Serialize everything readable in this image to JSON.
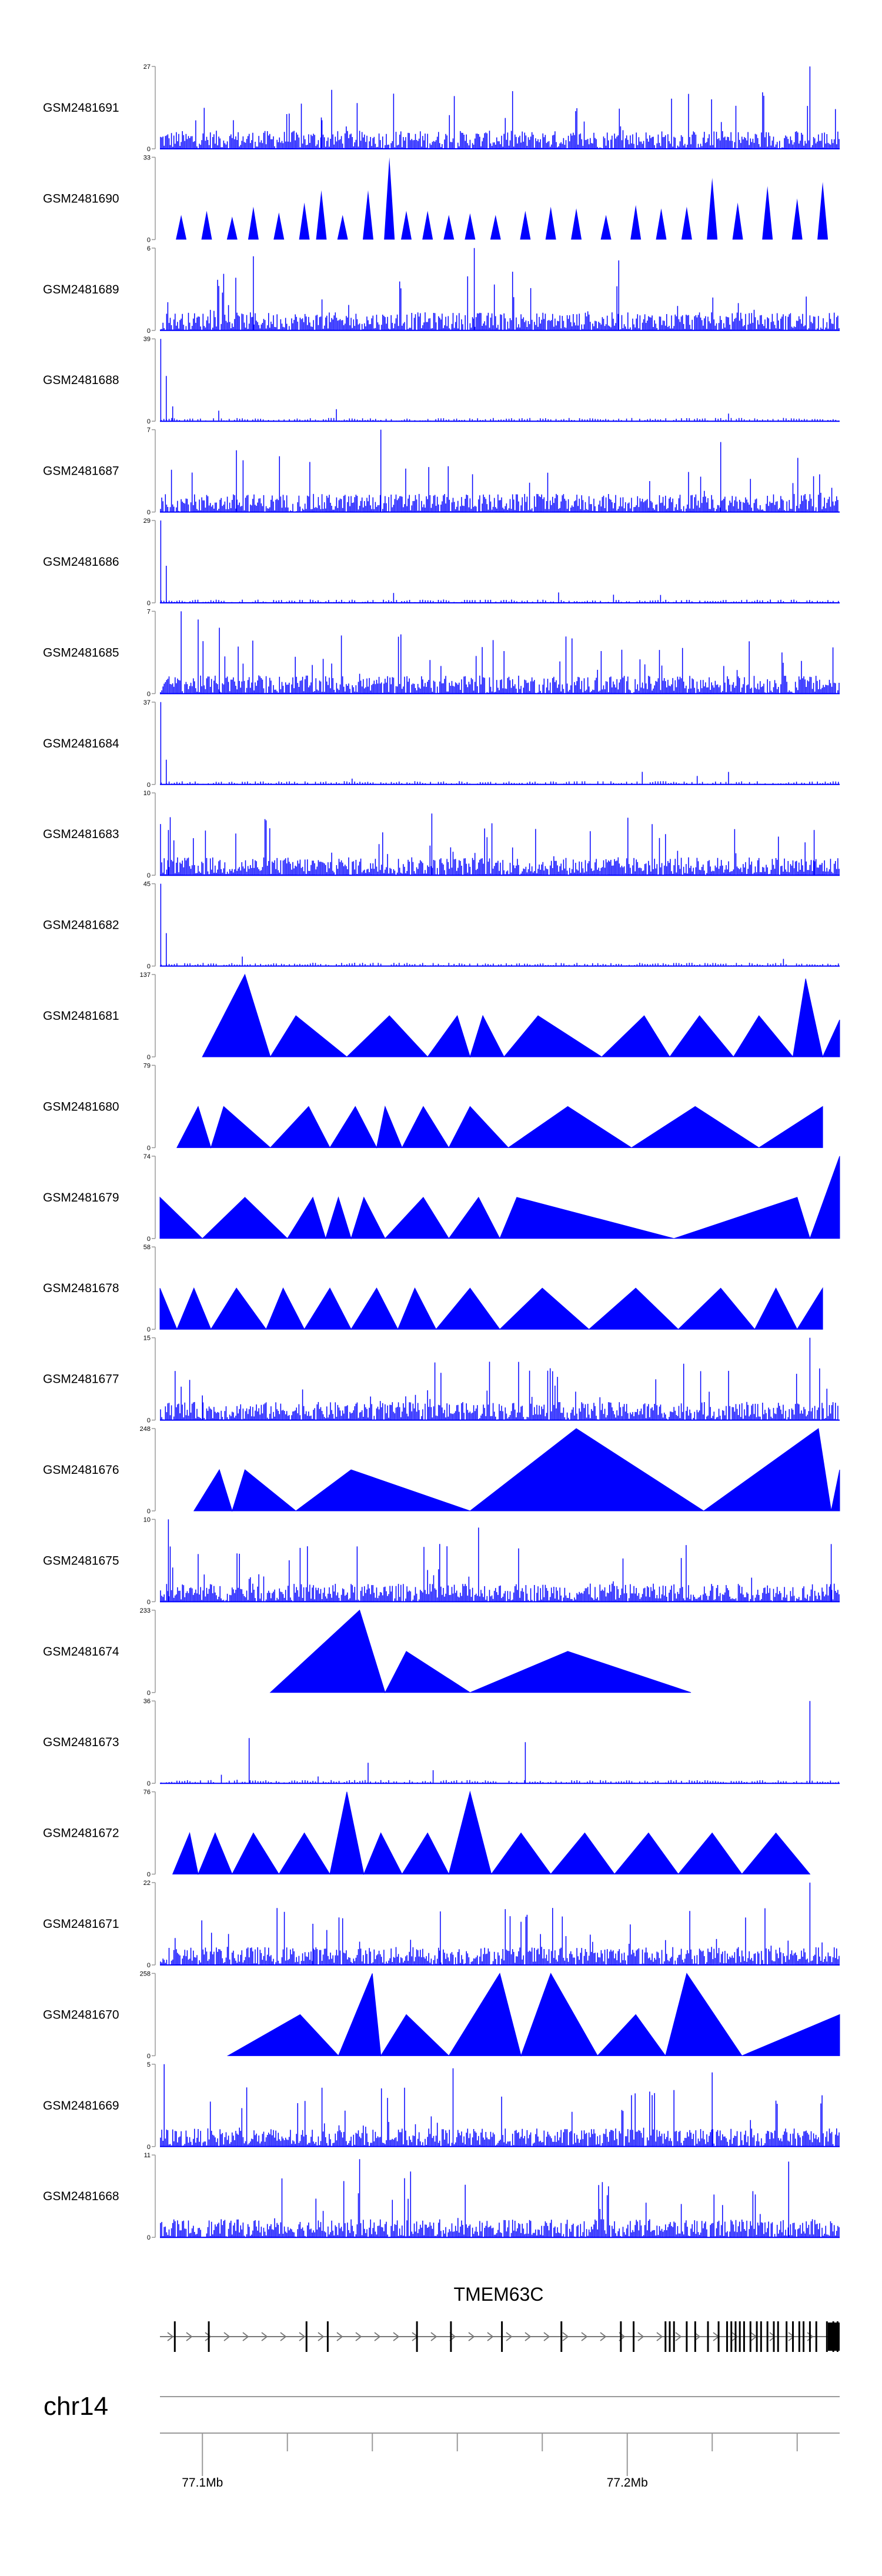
{
  "colors": {
    "signal": "#0000FF",
    "axis": "#9a9a9a",
    "text": "#000000",
    "exon": "#000000"
  },
  "chart_data": {
    "type": "area",
    "chromosome": "chr14",
    "xlim_mb": [
      77.09,
      77.25
    ],
    "x_ticks": [
      {
        "value": 77.1,
        "label": "77.1Mb"
      },
      {
        "value": 77.12,
        "label": ""
      },
      {
        "value": 77.14,
        "label": ""
      },
      {
        "value": 77.16,
        "label": ""
      },
      {
        "value": 77.18,
        "label": ""
      },
      {
        "value": 77.2,
        "label": "77.2Mb"
      },
      {
        "value": 77.22,
        "label": ""
      },
      {
        "value": 77.24,
        "label": ""
      }
    ],
    "tracks": [
      {
        "name": "GSM2481691",
        "max": 27,
        "ylabel_max": "27",
        "ylabel_min": "0",
        "style": "dense",
        "peaks": [
          [
            77.128,
            0.38
          ],
          [
            77.243,
            1.0
          ]
        ]
      },
      {
        "name": "GSM2481690",
        "max": 33,
        "ylabel_max": "33",
        "ylabel_min": "0",
        "style": "spikes",
        "peaks": [
          [
            77.095,
            0.3
          ],
          [
            77.101,
            0.35
          ],
          [
            77.107,
            0.28
          ],
          [
            77.112,
            0.4
          ],
          [
            77.118,
            0.33
          ],
          [
            77.124,
            0.45
          ],
          [
            77.128,
            0.6
          ],
          [
            77.133,
            0.3
          ],
          [
            77.139,
            0.6
          ],
          [
            77.144,
            1.0
          ],
          [
            77.148,
            0.35
          ],
          [
            77.153,
            0.35
          ],
          [
            77.158,
            0.3
          ],
          [
            77.163,
            0.32
          ],
          [
            77.169,
            0.3
          ],
          [
            77.176,
            0.35
          ],
          [
            77.182,
            0.4
          ],
          [
            77.188,
            0.38
          ],
          [
            77.195,
            0.3
          ],
          [
            77.202,
            0.42
          ],
          [
            77.208,
            0.38
          ],
          [
            77.214,
            0.4
          ],
          [
            77.22,
            0.75
          ],
          [
            77.226,
            0.45
          ],
          [
            77.233,
            0.65
          ],
          [
            77.24,
            0.5
          ],
          [
            77.246,
            0.7
          ]
        ]
      },
      {
        "name": "GSM2481689",
        "max": 6,
        "ylabel_max": "6",
        "ylabel_min": "0",
        "style": "dense",
        "peaks": [
          [
            77.164,
            1.0
          ],
          [
            77.112,
            0.9
          ],
          [
            77.198,
            0.85
          ]
        ]
      },
      {
        "name": "GSM2481688",
        "max": 39,
        "ylabel_max": "39",
        "ylabel_min": "0",
        "style": "sparse",
        "peaks": [
          [
            77.0902,
            1.0
          ],
          [
            77.0915,
            0.55
          ],
          [
            77.093,
            0.18
          ]
        ]
      },
      {
        "name": "GSM2481687",
        "max": 7,
        "ylabel_max": "7",
        "ylabel_min": "0",
        "style": "dense",
        "peaks": [
          [
            77.142,
            1.0
          ],
          [
            77.222,
            0.85
          ],
          [
            77.108,
            0.75
          ]
        ]
      },
      {
        "name": "GSM2481686",
        "max": 29,
        "ylabel_max": "29",
        "ylabel_min": "0",
        "style": "sparse",
        "peaks": [
          [
            77.0902,
            1.0
          ],
          [
            77.0915,
            0.45
          ],
          [
            77.145,
            0.12
          ]
        ]
      },
      {
        "name": "GSM2481685",
        "max": 7,
        "ylabel_max": "7",
        "ylabel_min": "0",
        "style": "dense",
        "peaks": [
          [
            77.095,
            1.0
          ],
          [
            77.099,
            0.9
          ],
          [
            77.104,
            0.8
          ]
        ]
      },
      {
        "name": "GSM2481684",
        "max": 37,
        "ylabel_max": "37",
        "ylabel_min": "0",
        "style": "sparse",
        "peaks": [
          [
            77.0902,
            1.0
          ],
          [
            77.0915,
            0.3
          ]
        ]
      },
      {
        "name": "GSM2481683",
        "max": 10,
        "ylabel_max": "10",
        "ylabel_min": "0",
        "style": "dense",
        "peaks": [
          [
            77.154,
            0.75
          ],
          [
            77.244,
            0.55
          ],
          [
            77.092,
            0.55
          ]
        ]
      },
      {
        "name": "GSM2481682",
        "max": 45,
        "ylabel_max": "45",
        "ylabel_min": "0",
        "style": "sparse",
        "peaks": [
          [
            77.0902,
            1.0
          ],
          [
            77.0915,
            0.4
          ]
        ]
      },
      {
        "name": "GSM2481681",
        "max": 137,
        "ylabel_max": "137",
        "ylabel_min": "0",
        "style": "triangles",
        "points": [
          [
            77.1,
            0
          ],
          [
            77.11,
            1.0
          ],
          [
            77.116,
            0
          ],
          [
            77.122,
            0.5
          ],
          [
            77.134,
            0
          ],
          [
            77.144,
            0.5
          ],
          [
            77.153,
            0
          ],
          [
            77.16,
            0.5
          ],
          [
            77.163,
            0
          ],
          [
            77.166,
            0.5
          ],
          [
            77.171,
            0
          ],
          [
            77.179,
            0.5
          ],
          [
            77.194,
            0
          ],
          [
            77.204,
            0.5
          ],
          [
            77.21,
            0
          ],
          [
            77.217,
            0.5
          ],
          [
            77.225,
            0
          ],
          [
            77.231,
            0.5
          ],
          [
            77.239,
            0
          ],
          [
            77.242,
            0.95
          ],
          [
            77.246,
            0
          ],
          [
            77.25,
            0.45
          ]
        ]
      },
      {
        "name": "GSM2481680",
        "max": 79,
        "ylabel_max": "79",
        "ylabel_min": "0",
        "style": "triangles",
        "points": [
          [
            77.094,
            0
          ],
          [
            77.099,
            0.5
          ],
          [
            77.102,
            0
          ],
          [
            77.105,
            0.5
          ],
          [
            77.116,
            0
          ],
          [
            77.125,
            0.5
          ],
          [
            77.13,
            0
          ],
          [
            77.136,
            0.5
          ],
          [
            77.141,
            0
          ],
          [
            77.143,
            0.5
          ],
          [
            77.147,
            0
          ],
          [
            77.152,
            0.5
          ],
          [
            77.158,
            0
          ],
          [
            77.163,
            0.5
          ],
          [
            77.172,
            0
          ],
          [
            77.186,
            0.5
          ],
          [
            77.201,
            0
          ],
          [
            77.216,
            0.5
          ],
          [
            77.231,
            0
          ],
          [
            77.246,
            0.5
          ]
        ]
      },
      {
        "name": "GSM2481679",
        "max": 74,
        "ylabel_max": "74",
        "ylabel_min": "0",
        "style": "triangles",
        "points": [
          [
            77.09,
            0.5
          ],
          [
            77.1,
            0
          ],
          [
            77.11,
            0.5
          ],
          [
            77.12,
            0
          ],
          [
            77.126,
            0.5
          ],
          [
            77.129,
            0
          ],
          [
            77.132,
            0.5
          ],
          [
            77.135,
            0
          ],
          [
            77.138,
            0.5
          ],
          [
            77.143,
            0
          ],
          [
            77.152,
            0.5
          ],
          [
            77.158,
            0
          ],
          [
            77.165,
            0.5
          ],
          [
            77.17,
            0
          ],
          [
            77.174,
            0.5
          ],
          [
            77.211,
            0
          ],
          [
            77.24,
            0.5
          ],
          [
            77.243,
            0
          ],
          [
            77.25,
            1.0
          ]
        ]
      },
      {
        "name": "GSM2481678",
        "max": 58,
        "ylabel_max": "58",
        "ylabel_min": "0",
        "style": "triangles",
        "points": [
          [
            77.09,
            0.5
          ],
          [
            77.094,
            0
          ],
          [
            77.098,
            0.5
          ],
          [
            77.102,
            0
          ],
          [
            77.108,
            0.5
          ],
          [
            77.115,
            0
          ],
          [
            77.119,
            0.5
          ],
          [
            77.124,
            0
          ],
          [
            77.13,
            0.5
          ],
          [
            77.135,
            0
          ],
          [
            77.141,
            0.5
          ],
          [
            77.146,
            0
          ],
          [
            77.15,
            0.5
          ],
          [
            77.155,
            0
          ],
          [
            77.163,
            0.5
          ],
          [
            77.17,
            0
          ],
          [
            77.18,
            0.5
          ],
          [
            77.191,
            0
          ],
          [
            77.202,
            0.5
          ],
          [
            77.212,
            0
          ],
          [
            77.222,
            0.5
          ],
          [
            77.23,
            0
          ],
          [
            77.235,
            0.5
          ],
          [
            77.24,
            0
          ],
          [
            77.246,
            0.5
          ]
        ]
      },
      {
        "name": "GSM2481677",
        "max": 15,
        "ylabel_max": "15",
        "ylabel_min": "0",
        "style": "dense",
        "peaks": [
          [
            77.243,
            1.0
          ],
          [
            77.177,
            0.6
          ],
          [
            77.1,
            0.3
          ]
        ]
      },
      {
        "name": "GSM2481676",
        "max": 248,
        "ylabel_max": "248",
        "ylabel_min": "0",
        "style": "triangles",
        "points": [
          [
            77.098,
            0
          ],
          [
            77.104,
            0.5
          ],
          [
            77.107,
            0
          ],
          [
            77.11,
            0.5
          ],
          [
            77.122,
            0
          ],
          [
            77.135,
            0.5
          ],
          [
            77.163,
            0
          ],
          [
            77.188,
            1.0
          ],
          [
            77.218,
            0
          ],
          [
            77.245,
            1.0
          ],
          [
            77.248,
            0
          ],
          [
            77.25,
            0.5
          ]
        ]
      },
      {
        "name": "GSM2481675",
        "max": 10,
        "ylabel_max": "10",
        "ylabel_min": "0",
        "style": "dense",
        "peaks": [
          [
            77.092,
            1.0
          ],
          [
            77.165,
            0.9
          ],
          [
            77.248,
            0.7
          ]
        ]
      },
      {
        "name": "GSM2481674",
        "max": 233,
        "ylabel_max": "233",
        "ylabel_min": "0",
        "style": "triangles",
        "points": [
          [
            77.116,
            0
          ],
          [
            77.137,
            1.0
          ],
          [
            77.143,
            0
          ],
          [
            77.148,
            0.5
          ],
          [
            77.163,
            0
          ],
          [
            77.186,
            0.5
          ],
          [
            77.215,
            0
          ]
        ]
      },
      {
        "name": "GSM2481673",
        "max": 36,
        "ylabel_max": "36",
        "ylabel_min": "0",
        "style": "sparse",
        "peaks": [
          [
            77.243,
            1.0
          ],
          [
            77.111,
            0.55
          ],
          [
            77.176,
            0.5
          ],
          [
            77.139,
            0.25
          ]
        ]
      },
      {
        "name": "GSM2481672",
        "max": 76,
        "ylabel_max": "76",
        "ylabel_min": "0",
        "style": "triangles",
        "points": [
          [
            77.093,
            0
          ],
          [
            77.097,
            0.5
          ],
          [
            77.099,
            0
          ],
          [
            77.103,
            0.5
          ],
          [
            77.107,
            0
          ],
          [
            77.112,
            0.5
          ],
          [
            77.118,
            0
          ],
          [
            77.124,
            0.5
          ],
          [
            77.13,
            0
          ],
          [
            77.134,
            1.0
          ],
          [
            77.138,
            0
          ],
          [
            77.142,
            0.5
          ],
          [
            77.147,
            0
          ],
          [
            77.153,
            0.5
          ],
          [
            77.158,
            0
          ],
          [
            77.163,
            1.0
          ],
          [
            77.168,
            0
          ],
          [
            77.175,
            0.5
          ],
          [
            77.182,
            0
          ],
          [
            77.19,
            0.5
          ],
          [
            77.197,
            0
          ],
          [
            77.205,
            0.5
          ],
          [
            77.212,
            0
          ],
          [
            77.22,
            0.5
          ],
          [
            77.227,
            0
          ],
          [
            77.235,
            0.5
          ],
          [
            77.243,
            0
          ]
        ]
      },
      {
        "name": "GSM2481671",
        "max": 22,
        "ylabel_max": "22",
        "ylabel_min": "0",
        "style": "dense",
        "peaks": [
          [
            77.243,
            1.0
          ],
          [
            77.156,
            0.65
          ],
          [
            77.126,
            0.5
          ]
        ]
      },
      {
        "name": "GSM2481670",
        "max": 258,
        "ylabel_max": "258",
        "ylabel_min": "0",
        "style": "triangles",
        "points": [
          [
            77.106,
            0
          ],
          [
            77.123,
            0.5
          ],
          [
            77.132,
            0
          ],
          [
            77.14,
            1.0
          ],
          [
            77.142,
            0
          ],
          [
            77.148,
            0.5
          ],
          [
            77.158,
            0
          ],
          [
            77.17,
            1.0
          ],
          [
            77.175,
            0
          ],
          [
            77.182,
            1.0
          ],
          [
            77.193,
            0
          ],
          [
            77.202,
            0.5
          ],
          [
            77.209,
            0
          ],
          [
            77.214,
            1.0
          ],
          [
            77.227,
            0
          ],
          [
            77.25,
            0.5
          ]
        ]
      },
      {
        "name": "GSM2481669",
        "max": 5,
        "ylabel_max": "5",
        "ylabel_min": "0",
        "style": "dense",
        "peaks": [
          [
            77.091,
            1.0
          ],
          [
            77.159,
            0.95
          ],
          [
            77.22,
            0.9
          ]
        ]
      },
      {
        "name": "GSM2481668",
        "max": 11,
        "ylabel_max": "11",
        "ylabel_min": "0",
        "style": "dense",
        "peaks": [
          [
            77.137,
            0.95
          ],
          [
            77.238,
            0.92
          ],
          [
            77.149,
            0.8
          ]
        ]
      }
    ],
    "gene": {
      "name": "TMEM63C",
      "strand": "+",
      "start_mb": 77.09,
      "end_mb": 77.25,
      "exons_mb": [
        77.0935,
        77.1015,
        77.1245,
        77.1295,
        77.1505,
        77.1585,
        77.1705,
        77.1845,
        77.1985,
        77.2015,
        77.209,
        77.21,
        77.211,
        77.214,
        77.216,
        77.219,
        77.2215,
        77.2235,
        77.2245,
        77.2255,
        77.2265,
        77.2275,
        77.229,
        77.2305,
        77.2315,
        77.233,
        77.2345,
        77.2355,
        77.2375,
        77.239,
        77.2405,
        77.2415,
        77.243,
        77.2445,
        77.247,
        77.2485,
        77.2495
      ]
    }
  }
}
